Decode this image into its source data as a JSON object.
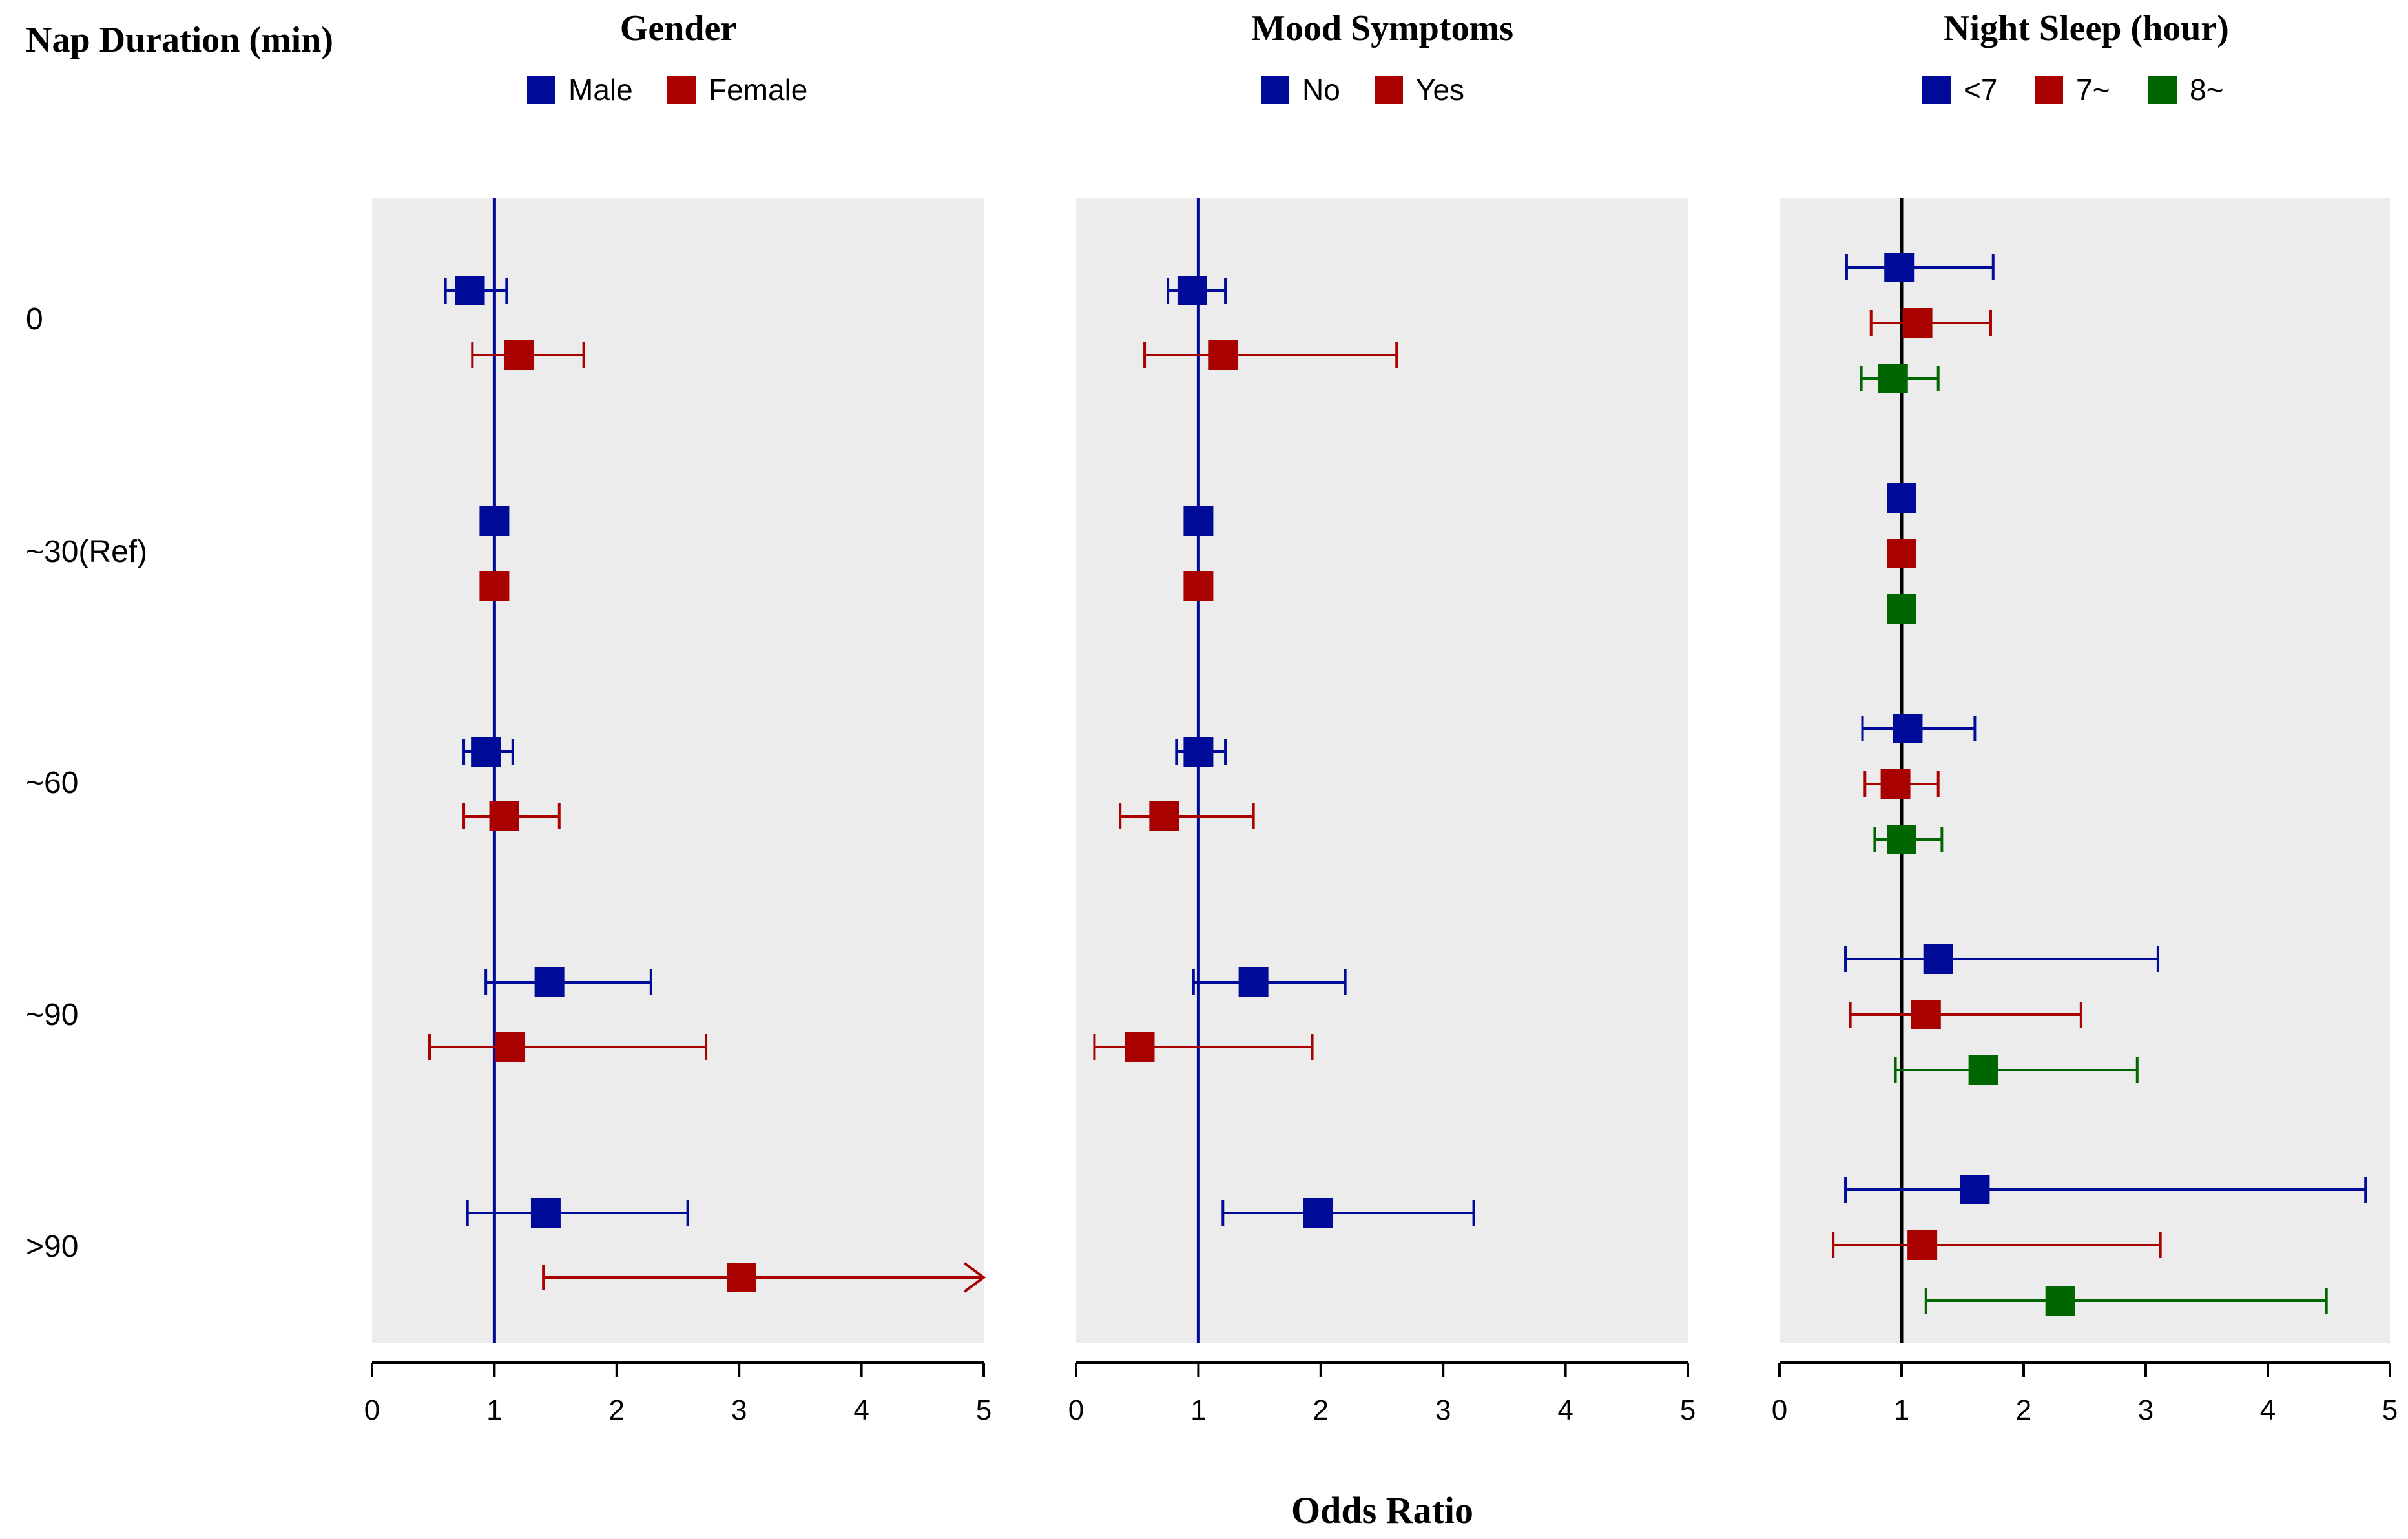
{
  "y_title": "Nap Duration (min)",
  "x_title": "Odds Ratio",
  "colors": {
    "blue": "#000c99",
    "red": "#a90000",
    "green": "#006600",
    "panel_bg": "#ececec",
    "ref_line_panels": "#000c99",
    "ref_line_last": "#000000"
  },
  "chart_data": [
    {
      "type": "forest",
      "title": "Gender",
      "categories": [
        "0",
        "~30(Ref)",
        "~60",
        "~90",
        ">90"
      ],
      "xlim": [
        0,
        5
      ],
      "xticks": [
        0,
        1,
        2,
        3,
        4,
        5
      ],
      "reference_line": 1,
      "legend_position": "top",
      "series": [
        {
          "name": "Male",
          "color": "blue",
          "points": [
            {
              "or": 0.8,
              "lo": 0.6,
              "hi": 1.1
            },
            {
              "or": 1.0,
              "lo": null,
              "hi": null
            },
            {
              "or": 0.93,
              "lo": 0.75,
              "hi": 1.15
            },
            {
              "or": 1.45,
              "lo": 0.93,
              "hi": 2.28
            },
            {
              "or": 1.42,
              "lo": 0.78,
              "hi": 2.58
            }
          ]
        },
        {
          "name": "Female",
          "color": "red",
          "points": [
            {
              "or": 1.2,
              "lo": 0.82,
              "hi": 1.73
            },
            {
              "or": 1.0,
              "lo": null,
              "hi": null
            },
            {
              "or": 1.08,
              "lo": 0.75,
              "hi": 1.53
            },
            {
              "or": 1.13,
              "lo": 0.47,
              "hi": 2.73
            },
            {
              "or": 3.02,
              "lo": 1.4,
              "hi": 5.0,
              "truncated": true
            }
          ]
        }
      ]
    },
    {
      "type": "forest",
      "title": "Mood Symptoms",
      "categories": [
        "0",
        "~30(Ref)",
        "~60",
        "~90",
        ">90"
      ],
      "xlim": [
        0,
        5
      ],
      "xticks": [
        0,
        1,
        2,
        3,
        4,
        5
      ],
      "reference_line": 1,
      "legend_position": "top",
      "series": [
        {
          "name": "No",
          "color": "blue",
          "points": [
            {
              "or": 0.95,
              "lo": 0.75,
              "hi": 1.22
            },
            {
              "or": 1.0,
              "lo": null,
              "hi": null
            },
            {
              "or": 1.0,
              "lo": 0.82,
              "hi": 1.22
            },
            {
              "or": 1.45,
              "lo": 0.96,
              "hi": 2.2
            },
            {
              "or": 1.98,
              "lo": 1.2,
              "hi": 3.25
            }
          ]
        },
        {
          "name": "Yes",
          "color": "red",
          "points": [
            {
              "or": 1.2,
              "lo": 0.56,
              "hi": 2.62
            },
            {
              "or": 1.0,
              "lo": null,
              "hi": null
            },
            {
              "or": 0.72,
              "lo": 0.36,
              "hi": 1.45
            },
            {
              "or": 0.52,
              "lo": 0.15,
              "hi": 1.93
            },
            null
          ]
        }
      ]
    },
    {
      "type": "forest",
      "title": "Night Sleep (hour)",
      "categories": [
        "0",
        "~30(Ref)",
        "~60",
        "~90",
        ">90"
      ],
      "xlim": [
        0,
        5
      ],
      "xticks": [
        0,
        1,
        2,
        3,
        4,
        5
      ],
      "reference_line": 1,
      "legend_position": "top",
      "series": [
        {
          "name": "<7",
          "color": "blue",
          "points": [
            {
              "or": 0.98,
              "lo": 0.55,
              "hi": 1.75
            },
            {
              "or": 1.0,
              "lo": null,
              "hi": null
            },
            {
              "or": 1.05,
              "lo": 0.68,
              "hi": 1.6
            },
            {
              "or": 1.3,
              "lo": 0.54,
              "hi": 3.1
            },
            {
              "or": 1.6,
              "lo": 0.54,
              "hi": 4.8
            }
          ]
        },
        {
          "name": "7~",
          "color": "red",
          "points": [
            {
              "or": 1.13,
              "lo": 0.75,
              "hi": 1.73
            },
            {
              "or": 1.0,
              "lo": null,
              "hi": null
            },
            {
              "or": 0.95,
              "lo": 0.7,
              "hi": 1.3
            },
            {
              "or": 1.2,
              "lo": 0.58,
              "hi": 2.47
            },
            {
              "or": 1.17,
              "lo": 0.44,
              "hi": 3.12
            }
          ]
        },
        {
          "name": "8~",
          "color": "green",
          "points": [
            {
              "or": 0.93,
              "lo": 0.67,
              "hi": 1.3
            },
            {
              "or": 1.0,
              "lo": null,
              "hi": null
            },
            {
              "or": 1.0,
              "lo": 0.78,
              "hi": 1.33
            },
            {
              "or": 1.67,
              "lo": 0.95,
              "hi": 2.93
            },
            {
              "or": 2.3,
              "lo": 1.2,
              "hi": 4.48
            }
          ]
        }
      ]
    }
  ]
}
